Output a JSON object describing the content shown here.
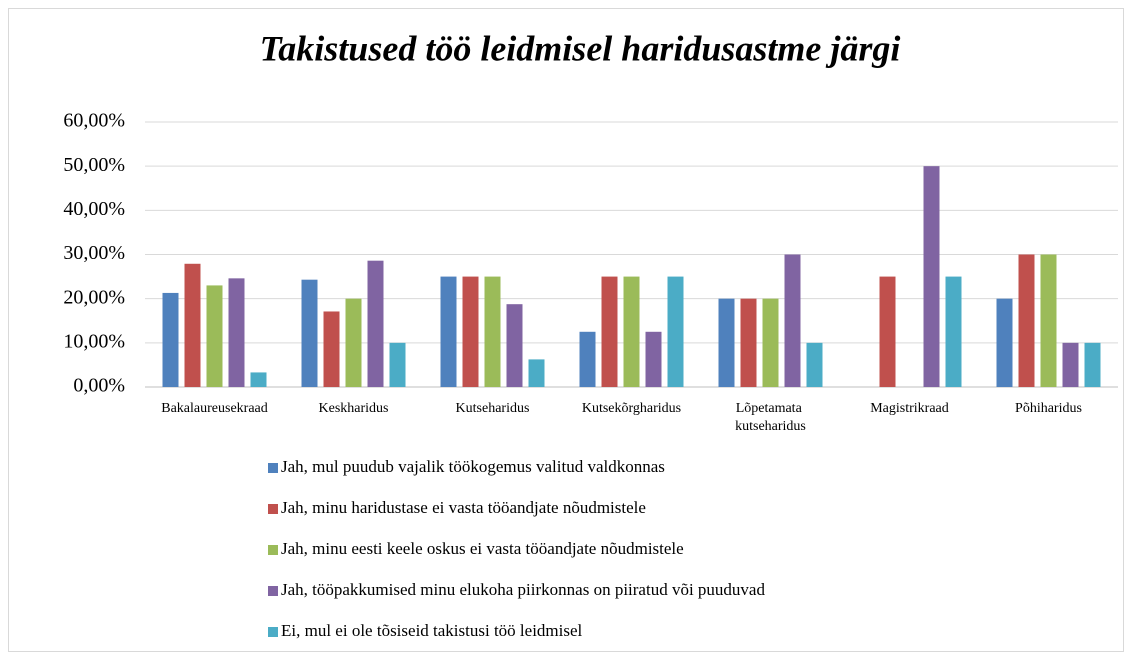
{
  "chart_data": {
    "type": "bar",
    "title": "Takistused töö leidmisel haridusastme järgi",
    "categories": [
      "Bakalaureusekraad",
      "Keskharidus",
      "Kutseharidus",
      "Kutsekõrgharidus",
      "Lõpetamata kutseharidus",
      "Magistrikraad",
      "Põhiharidus"
    ],
    "series": [
      {
        "name": "Jah, mul puudub vajalik töökogemus valitud valdkonnas",
        "color": "#4f81bd",
        "values": [
          21.3,
          24.3,
          25,
          12.5,
          20,
          0,
          20
        ]
      },
      {
        "name": "Jah, minu haridustase ei vasta tööandjate nõudmistele",
        "color": "#c0504d",
        "values": [
          27.9,
          17.1,
          25,
          25,
          20,
          25,
          30
        ]
      },
      {
        "name": "Jah, minu eesti keele oskus ei vasta tööandjate nõudmistele",
        "color": "#9bbb59",
        "values": [
          23,
          20,
          25,
          25,
          20,
          0,
          30
        ]
      },
      {
        "name": "Jah, tööpakkumised minu elukoha piirkonnas on piiratud või puuduvad",
        "color": "#8064a2",
        "values": [
          24.6,
          28.6,
          18.75,
          12.5,
          30,
          50,
          10
        ]
      },
      {
        "name": "Ei, mul ei ole tõsiseid takistusi töö leidmisel",
        "color": "#4bacc6",
        "values": [
          3.3,
          10,
          6.25,
          25,
          10,
          25,
          10
        ]
      }
    ],
    "ylim": [
      0,
      60
    ],
    "yticks": [
      {
        "value": 0,
        "label": "0,00%"
      },
      {
        "value": 10,
        "label": "10,00%"
      },
      {
        "value": 20,
        "label": "20,00%"
      },
      {
        "value": 30,
        "label": "30,00%"
      },
      {
        "value": 40,
        "label": "40,00%"
      },
      {
        "value": 50,
        "label": "50,00%"
      },
      {
        "value": 60,
        "label": "60,00%"
      }
    ],
    "grid": true,
    "legend": "bottom"
  }
}
